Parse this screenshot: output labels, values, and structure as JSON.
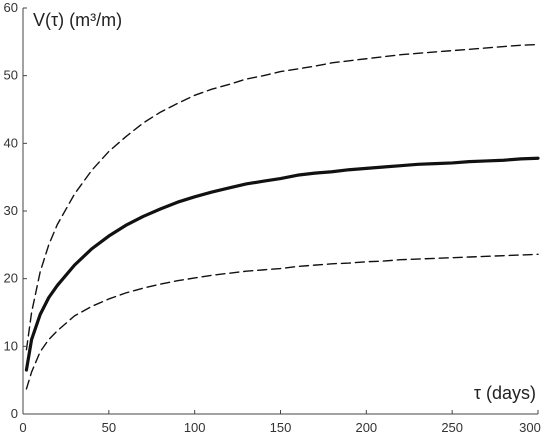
{
  "chart_data": {
    "type": "line",
    "xlabel": "τ (days)",
    "ylabel": "V(τ) (m³/m)",
    "xlim": [
      0,
      300
    ],
    "ylim": [
      0,
      60
    ],
    "xticks": [
      "0",
      "50",
      "100",
      "150",
      "200",
      "250",
      "300"
    ],
    "yticks": [
      "0",
      "10",
      "20",
      "30",
      "40",
      "50",
      "60"
    ],
    "grid": false,
    "legend": "none",
    "series": [
      {
        "style": "solid",
        "color": "#111111",
        "x": [
          2,
          5,
          10,
          15,
          20,
          30,
          40,
          50,
          60,
          70,
          80,
          90,
          100,
          110,
          120,
          130,
          140,
          150,
          160,
          170,
          180,
          190,
          200,
          210,
          220,
          230,
          240,
          250,
          260,
          270,
          280,
          290,
          300
        ],
        "y": [
          6.5,
          11,
          14.7,
          17.2,
          19.0,
          22.0,
          24.4,
          26.3,
          27.9,
          29.2,
          30.3,
          31.3,
          32.1,
          32.8,
          33.4,
          34.0,
          34.4,
          34.8,
          35.3,
          35.6,
          35.8,
          36.1,
          36.3,
          36.5,
          36.7,
          36.9,
          37.0,
          37.1,
          37.3,
          37.4,
          37.5,
          37.7,
          37.8
        ]
      },
      {
        "style": "dashed",
        "color": "#111111",
        "x": [
          2,
          5,
          10,
          15,
          20,
          30,
          40,
          50,
          60,
          70,
          80,
          90,
          100,
          110,
          120,
          130,
          140,
          150,
          160,
          170,
          180,
          190,
          200,
          210,
          220,
          230,
          240,
          250,
          260,
          270,
          280,
          290,
          300
        ],
        "y": [
          9.5,
          15,
          21,
          25,
          28,
          32.5,
          36,
          38.8,
          41,
          43,
          44.6,
          45.9,
          47.1,
          48,
          48.7,
          49.5,
          50,
          50.6,
          51,
          51.4,
          51.9,
          52.2,
          52.5,
          52.8,
          53.1,
          53.3,
          53.5,
          53.7,
          53.9,
          54.1,
          54.3,
          54.5,
          54.6
        ]
      },
      {
        "style": "dashed",
        "color": "#111111",
        "x": [
          2,
          5,
          10,
          15,
          20,
          30,
          40,
          50,
          60,
          70,
          80,
          90,
          100,
          110,
          120,
          130,
          140,
          150,
          160,
          170,
          180,
          190,
          200,
          210,
          220,
          230,
          240,
          250,
          260,
          270,
          280,
          290,
          300
        ],
        "y": [
          3.7,
          6.2,
          9.2,
          11.0,
          12.3,
          14.5,
          15.9,
          17.0,
          17.9,
          18.6,
          19.2,
          19.7,
          20.1,
          20.5,
          20.8,
          21.1,
          21.3,
          21.5,
          21.8,
          22.0,
          22.2,
          22.3,
          22.5,
          22.6,
          22.8,
          22.9,
          23.0,
          23.1,
          23.2,
          23.3,
          23.4,
          23.5,
          23.6
        ]
      }
    ]
  }
}
